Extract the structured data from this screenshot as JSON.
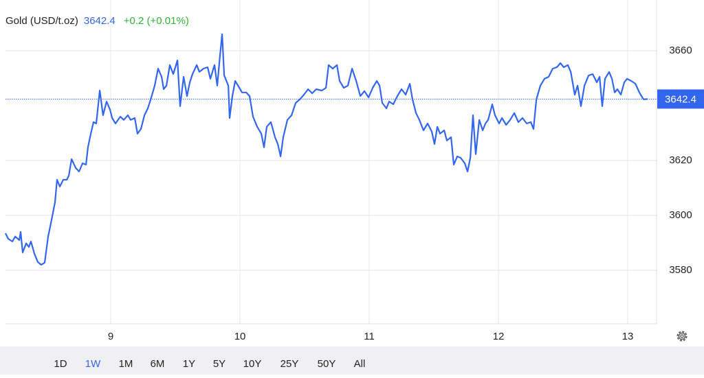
{
  "chart_data": {
    "type": "line",
    "title": "Gold (USD/t.oz)",
    "price_label": "3642.4",
    "change_label": "+0.2 (+0.01%)",
    "xlim": [
      8.186,
      13.223
    ],
    "xticks": [
      9,
      10,
      11,
      12,
      13
    ],
    "ylim": [
      3560.5,
      3678.5
    ],
    "yticks": [
      3580,
      3600,
      3620,
      3660
    ],
    "grid": true,
    "x": [
      8.186,
      8.207,
      8.239,
      8.261,
      8.293,
      8.303,
      8.319,
      8.346,
      8.367,
      8.383,
      8.41,
      8.436,
      8.463,
      8.489,
      8.516,
      8.543,
      8.569,
      8.585,
      8.606,
      8.633,
      8.66,
      8.676,
      8.697,
      8.729,
      8.755,
      8.782,
      8.809,
      8.824,
      8.846,
      8.867,
      8.888,
      8.915,
      8.941,
      8.968,
      8.995,
      9.011,
      9.037,
      9.074,
      9.101,
      9.133,
      9.154,
      9.186,
      9.207,
      9.234,
      9.261,
      9.287,
      9.314,
      9.34,
      9.367,
      9.394,
      9.41,
      9.431,
      9.457,
      9.484,
      9.516,
      9.537,
      9.564,
      9.59,
      9.612,
      9.633,
      9.665,
      9.686,
      9.718,
      9.75,
      9.771,
      9.803,
      9.824,
      9.846,
      9.862,
      9.878,
      9.91,
      9.92,
      9.941,
      9.963,
      9.995,
      10.016,
      10.048,
      10.074,
      10.101,
      10.133,
      10.165,
      10.186,
      10.207,
      10.239,
      10.271,
      10.293,
      10.314,
      10.335,
      10.367,
      10.399,
      10.431,
      10.463,
      10.495,
      10.527,
      10.559,
      10.59,
      10.633,
      10.665,
      10.686,
      10.718,
      10.75,
      10.771,
      10.803,
      10.835,
      10.867,
      10.899,
      10.931,
      10.963,
      10.995,
      11.027,
      11.059,
      11.08,
      11.101,
      11.133,
      11.154,
      11.186,
      11.218,
      11.25,
      11.282,
      11.314,
      11.335,
      11.362,
      11.388,
      11.42,
      11.452,
      11.484,
      11.505,
      11.527,
      11.548,
      11.58,
      11.601,
      11.633,
      11.654,
      11.681,
      11.707,
      11.739,
      11.761,
      11.782,
      11.803,
      11.824,
      11.851,
      11.878,
      11.899,
      11.92,
      11.952,
      11.973,
      12.005,
      12.027,
      12.059,
      12.09,
      12.122,
      12.154,
      12.186,
      12.218,
      12.25,
      12.271,
      12.293,
      12.324,
      12.356,
      12.388,
      12.42,
      12.452,
      12.479,
      12.505,
      12.537,
      12.559,
      12.59,
      12.612,
      12.638,
      12.665,
      12.697,
      12.729,
      12.761,
      12.782,
      12.803,
      12.824,
      12.856,
      12.878,
      12.899,
      12.92,
      12.947,
      12.973,
      12.995,
      13.027,
      13.059,
      13.09,
      13.122,
      13.154
    ],
    "series": [
      {
        "name": "Gold",
        "color": "#3366ee",
        "values": [
          3593.5,
          3591.5,
          3590.5,
          3592.3,
          3591.0,
          3594.0,
          3586.5,
          3589.8,
          3588.5,
          3590.5,
          3586.0,
          3583.0,
          3582.0,
          3582.8,
          3592.3,
          3598.5,
          3604.8,
          3613.0,
          3610.5,
          3613.0,
          3613.0,
          3614.5,
          3620.5,
          3617.3,
          3616.0,
          3619.0,
          3618.5,
          3624.8,
          3629.8,
          3634.0,
          3633.5,
          3645.5,
          3636.5,
          3641.5,
          3638.5,
          3635.5,
          3633.5,
          3636.0,
          3634.8,
          3636.5,
          3634.8,
          3635.5,
          3629.8,
          3631.5,
          3636.5,
          3639.0,
          3643.0,
          3647.3,
          3653.5,
          3650.5,
          3646.0,
          3647.3,
          3654.8,
          3651.5,
          3656.5,
          3639.8,
          3650.5,
          3643.5,
          3648.5,
          3651.5,
          3654.8,
          3652.3,
          3653.5,
          3654.0,
          3649.8,
          3654.8,
          3647.3,
          3658.5,
          3666.0,
          3651.0,
          3647.3,
          3635.5,
          3643.5,
          3649.0,
          3646.5,
          3644.8,
          3644.8,
          3643.5,
          3636.0,
          3632.3,
          3629.8,
          3624.8,
          3632.3,
          3634.0,
          3628.5,
          3626.0,
          3621.5,
          3628.5,
          3634.8,
          3636.5,
          3641.0,
          3642.3,
          3644.0,
          3646.0,
          3644.5,
          3646.0,
          3645.5,
          3646.5,
          3654.8,
          3653.5,
          3654.8,
          3649.0,
          3646.5,
          3647.3,
          3653.5,
          3649.0,
          3643.5,
          3645.3,
          3643.0,
          3646.5,
          3649.0,
          3647.3,
          3641.0,
          3639.0,
          3641.5,
          3640.5,
          3643.5,
          3646.0,
          3644.0,
          3648.0,
          3642.3,
          3637.3,
          3634.8,
          3631.0,
          3633.5,
          3630.5,
          3626.0,
          3632.3,
          3629.8,
          3631.0,
          3627.3,
          3628.5,
          3618.5,
          3621.5,
          3621.0,
          3619.0,
          3616.0,
          3621.0,
          3636.5,
          3622.3,
          3634.8,
          3631.0,
          3633.5,
          3634.8,
          3640.5,
          3636.5,
          3633.5,
          3635.5,
          3633.0,
          3634.8,
          3637.3,
          3634.0,
          3635.5,
          3633.5,
          3634.0,
          3631.5,
          3642.3,
          3647.3,
          3649.8,
          3650.5,
          3653.5,
          3654.0,
          3655.5,
          3654.0,
          3654.8,
          3652.3,
          3644.0,
          3647.3,
          3639.8,
          3647.3,
          3651.0,
          3651.5,
          3648.5,
          3650.5,
          3639.8,
          3649.8,
          3652.3,
          3649.8,
          3644.8,
          3646.0,
          3644.0,
          3648.5,
          3649.8,
          3649.0,
          3648.0,
          3644.8,
          3642.3,
          3642.4
        ]
      }
    ]
  },
  "range_buttons": [
    "1D",
    "1W",
    "1M",
    "6M",
    "1Y",
    "5Y",
    "10Y",
    "25Y",
    "50Y",
    "All"
  ],
  "selected_range": 1
}
